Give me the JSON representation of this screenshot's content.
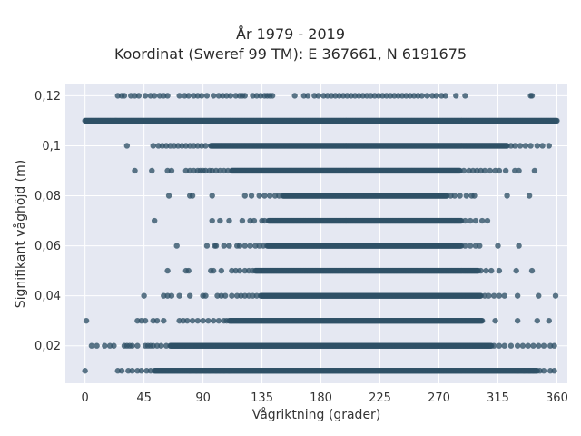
{
  "chart_data": {
    "type": "scatter",
    "title_lines": [
      "År 1979 - 2019",
      "Koordinat (Sweref 99 TM): E 367661, N 6191675"
    ],
    "xlabel": "Vågriktning (grader)",
    "ylabel": "Signifikant våghöjd (m)",
    "xlim": [
      -15,
      368
    ],
    "ylim": [
      0.005,
      0.1245
    ],
    "x_ticks": [
      0,
      45,
      90,
      135,
      180,
      225,
      270,
      315,
      360
    ],
    "y_ticks": [
      0.02,
      0.04,
      0.06,
      0.08,
      0.1,
      0.12
    ],
    "y_tick_labels": [
      "0,02",
      "0,04",
      "0,06",
      "0,08",
      "0,1",
      "0,12"
    ],
    "x_tick_labels": [
      "0",
      "45",
      "90",
      "135",
      "180",
      "225",
      "270",
      "315",
      "360"
    ],
    "marker_color": "#2f5166",
    "background_color": "#e5e8f2",
    "grid": true,
    "rows": [
      {
        "y": 0.01,
        "dense": [
          53,
          345
        ],
        "sparse": [
          0,
          25,
          28,
          33,
          36,
          40,
          43,
          47,
          50,
          80,
          85,
          88,
          92,
          95,
          100,
          103,
          106,
          110,
          330,
          335,
          339,
          342,
          347,
          350,
          355,
          358
        ]
      },
      {
        "y": 0.02,
        "dense": [
          65,
          310
        ],
        "sparse": [
          5,
          9,
          15,
          19,
          22,
          30,
          32,
          34,
          36,
          40,
          46,
          48,
          50,
          52,
          55,
          58,
          62,
          312,
          316,
          320,
          325,
          330,
          334,
          338,
          342,
          346,
          350,
          355,
          358
        ]
      },
      {
        "y": 0.03,
        "dense": [
          110,
          303
        ],
        "sparse": [
          1,
          40,
          43,
          46,
          52,
          55,
          60,
          72,
          75,
          78,
          82,
          86,
          90,
          94,
          98,
          102,
          106,
          108,
          313,
          330,
          345,
          354
        ]
      },
      {
        "y": 0.04,
        "dense": [
          134,
          302
        ],
        "sparse": [
          45,
          60,
          63,
          66,
          72,
          80,
          90,
          92,
          101,
          104,
          107,
          112,
          116,
          119,
          122,
          125,
          128,
          131,
          305,
          308,
          312,
          316,
          320,
          330,
          346,
          359
        ]
      },
      {
        "y": 0.05,
        "dense": [
          130,
          300
        ],
        "sparse": [
          63,
          77,
          79,
          96,
          98,
          104,
          112,
          115,
          118,
          122,
          125,
          128,
          302,
          306,
          310,
          316,
          329,
          341
        ]
      },
      {
        "y": 0.06,
        "dense": [
          139,
          287
        ],
        "sparse": [
          70,
          93,
          99,
          100,
          106,
          110,
          116,
          118,
          122,
          126,
          130,
          133,
          136,
          290,
          294,
          298,
          301,
          315,
          331
        ]
      },
      {
        "y": 0.07,
        "dense": [
          140,
          287
        ],
        "sparse": [
          53,
          97,
          103,
          110,
          120,
          126,
          129,
          135,
          137,
          290,
          294,
          298,
          303,
          307
        ]
      },
      {
        "y": 0.08,
        "dense": [
          151,
          276
        ],
        "sparse": [
          64,
          80,
          82,
          97,
          122,
          127,
          133,
          137,
          141,
          145,
          148,
          279,
          282,
          286,
          291,
          295,
          297,
          322,
          339
        ]
      },
      {
        "y": 0.09,
        "dense": [
          112,
          286
        ],
        "sparse": [
          38,
          51,
          63,
          66,
          77,
          80,
          83,
          86,
          88,
          90,
          92,
          95,
          97,
          100,
          103,
          106,
          109,
          289,
          293,
          296,
          299,
          302,
          305,
          309,
          313,
          316,
          321,
          328,
          331,
          343
        ]
      },
      {
        "y": 0.1,
        "dense": [
          96,
          322
        ],
        "sparse": [
          32,
          52,
          56,
          59,
          62,
          65,
          68,
          71,
          74,
          77,
          80,
          83,
          86,
          89,
          92,
          325,
          328,
          332,
          336,
          340,
          345,
          349,
          354
        ]
      },
      {
        "y": 0.11,
        "dense": [
          0,
          360
        ],
        "sparse": []
      },
      {
        "y": 0.12,
        "dense": [],
        "sparse": [
          25,
          28,
          30,
          35,
          38,
          41,
          46,
          50,
          53,
          57,
          60,
          63,
          72,
          76,
          79,
          83,
          86,
          89,
          93,
          98,
          102,
          105,
          108,
          111,
          115,
          118,
          120,
          122,
          128,
          131,
          134,
          137,
          139,
          141,
          143,
          160,
          167,
          170,
          175,
          178,
          182,
          185,
          188,
          191,
          194,
          197,
          200,
          203,
          206,
          209,
          212,
          215,
          218,
          221,
          224,
          227,
          230,
          233,
          236,
          239,
          242,
          245,
          248,
          251,
          254,
          257,
          261,
          265,
          268,
          272,
          275,
          283,
          290,
          340,
          341
        ]
      }
    ]
  }
}
